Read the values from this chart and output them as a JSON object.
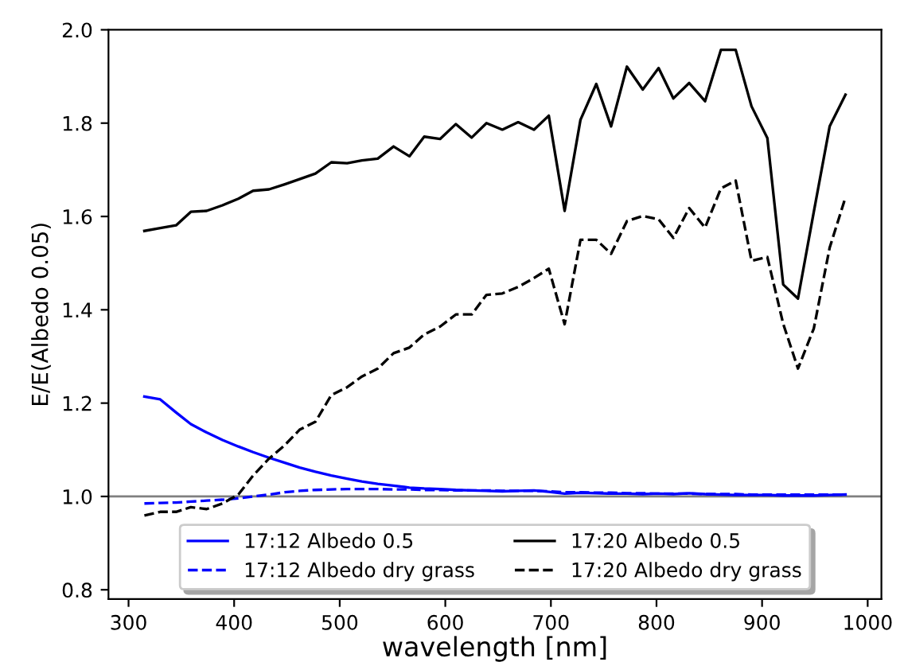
{
  "chart_data": {
    "type": "line",
    "xlabel": "wavelength [nm]",
    "ylabel": "E/E(Albedo 0.05)",
    "x": [
      315,
      330,
      345,
      359,
      374,
      389,
      404,
      418,
      433,
      448,
      462,
      477,
      492,
      507,
      521,
      536,
      551,
      566,
      580,
      595,
      610,
      625,
      639,
      654,
      669,
      684,
      698,
      713,
      728,
      743,
      757,
      772,
      787,
      802,
      816,
      831,
      846,
      861,
      875,
      890,
      905,
      920,
      934,
      949,
      964,
      979
    ],
    "xlim": [
      281,
      1013
    ],
    "ylim": [
      0.78,
      2.0
    ],
    "xticks": [
      300,
      400,
      500,
      600,
      700,
      800,
      900,
      1000
    ],
    "yticks": [
      {
        "value": 0.8,
        "label": "0.8"
      },
      {
        "value": 1.0,
        "label": "1.0"
      },
      {
        "value": 1.2,
        "label": "1.2"
      },
      {
        "value": 1.4,
        "label": "1.4"
      },
      {
        "value": 1.6,
        "label": "1.6"
      },
      {
        "value": 1.8,
        "label": "1.8"
      },
      {
        "value": 2.0,
        "label": "2.0"
      }
    ],
    "grid": false,
    "legend": "bottom",
    "ref_lines": [
      {
        "axis": "y",
        "value": 1.0,
        "color": "#808080",
        "line_style": "solid"
      }
    ],
    "series": [
      {
        "name": "17:12 Albedo 0.5",
        "color": "#0000ff",
        "line_style": "solid",
        "values": [
          1.214,
          1.208,
          1.18,
          1.155,
          1.137,
          1.121,
          1.107,
          1.095,
          1.083,
          1.072,
          1.062,
          1.053,
          1.045,
          1.038,
          1.032,
          1.027,
          1.023,
          1.019,
          1.017,
          1.016,
          1.014,
          1.013,
          1.012,
          1.011,
          1.012,
          1.013,
          1.01,
          1.006,
          1.008,
          1.007,
          1.006,
          1.006,
          1.005,
          1.006,
          1.005,
          1.007,
          1.005,
          1.004,
          1.003,
          1.003,
          1.003,
          1.002,
          1.002,
          1.002,
          1.003,
          1.004
        ]
      },
      {
        "name": "17:12 Albedo dry grass",
        "color": "#0000ff",
        "line_style": "dashed",
        "values": [
          0.985,
          0.986,
          0.987,
          0.989,
          0.991,
          0.993,
          0.996,
          1.0,
          1.004,
          1.009,
          1.012,
          1.014,
          1.015,
          1.016,
          1.016,
          1.016,
          1.015,
          1.015,
          1.014,
          1.014,
          1.013,
          1.013,
          1.013,
          1.012,
          1.012,
          1.012,
          1.011,
          1.009,
          1.009,
          1.008,
          1.008,
          1.007,
          1.007,
          1.006,
          1.006,
          1.006,
          1.005,
          1.005,
          1.005,
          1.004,
          1.004,
          1.004,
          1.004,
          1.004,
          1.004,
          1.004
        ]
      },
      {
        "name": "17:20 Albedo 0.5",
        "color": "#000000",
        "line_style": "solid",
        "values": [
          1.569,
          1.575,
          1.581,
          1.61,
          1.612,
          1.624,
          1.638,
          1.655,
          1.658,
          1.669,
          1.68,
          1.692,
          1.716,
          1.714,
          1.72,
          1.724,
          1.75,
          1.729,
          1.771,
          1.766,
          1.798,
          1.769,
          1.8,
          1.786,
          1.802,
          1.786,
          1.816,
          1.612,
          1.807,
          1.884,
          1.793,
          1.921,
          1.872,
          1.918,
          1.853,
          1.886,
          1.847,
          1.957,
          1.957,
          1.836,
          1.768,
          1.454,
          1.424,
          1.61,
          1.793,
          1.861
        ]
      },
      {
        "name": "17:20 Albedo dry grass",
        "color": "#000000",
        "line_style": "dashed",
        "values": [
          0.959,
          0.967,
          0.967,
          0.977,
          0.973,
          0.985,
          1.004,
          1.045,
          1.081,
          1.11,
          1.143,
          1.16,
          1.217,
          1.234,
          1.257,
          1.274,
          1.307,
          1.319,
          1.347,
          1.364,
          1.39,
          1.39,
          1.432,
          1.435,
          1.449,
          1.468,
          1.488,
          1.369,
          1.55,
          1.55,
          1.52,
          1.59,
          1.601,
          1.594,
          1.554,
          1.618,
          1.576,
          1.66,
          1.677,
          1.505,
          1.513,
          1.37,
          1.274,
          1.36,
          1.533,
          1.641
        ]
      }
    ]
  }
}
